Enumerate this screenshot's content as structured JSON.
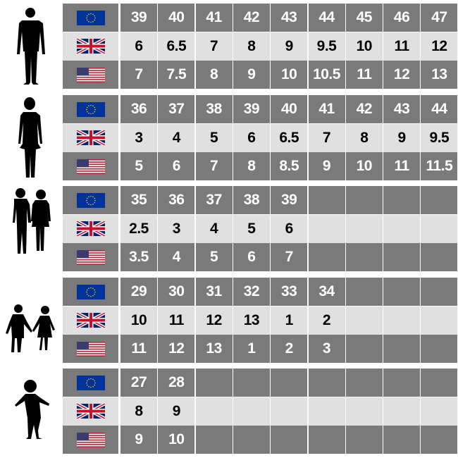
{
  "colors": {
    "dark_row": "#7a7a7a",
    "light_row": "#e0e0e0",
    "eu_blue": "#003399",
    "eu_star": "#ffcc00",
    "uk_red": "#c8102e",
    "uk_blue": "#012169"
  },
  "row_flags": [
    "eu-flag-icon",
    "uk-flag-icon",
    "us-flag-icon"
  ],
  "groups": [
    {
      "figure": "man-silhouette-icon",
      "eu": [
        "39",
        "40",
        "41",
        "42",
        "43",
        "44",
        "45",
        "46",
        "47"
      ],
      "uk": [
        "6",
        "6.5",
        "7",
        "8",
        "9",
        "9.5",
        "10",
        "11",
        "12"
      ],
      "us": [
        "7",
        "7.5",
        "8",
        "9",
        "10",
        "10.5",
        "11",
        "12",
        "13"
      ]
    },
    {
      "figure": "woman-silhouette-icon",
      "eu": [
        "36",
        "37",
        "38",
        "39",
        "40",
        "41",
        "42",
        "43",
        "44"
      ],
      "uk": [
        "3",
        "4",
        "5",
        "6",
        "6.5",
        "7",
        "8",
        "9",
        "9.5"
      ],
      "us": [
        "5",
        "6",
        "7",
        "8",
        "8.5",
        "9",
        "10",
        "11",
        "11.5"
      ]
    },
    {
      "figure": "teen-children-silhouette-icon",
      "eu": [
        "35",
        "36",
        "37",
        "38",
        "39",
        "",
        "",
        "",
        ""
      ],
      "uk": [
        "2.5",
        "3",
        "4",
        "5",
        "6",
        "",
        "",
        "",
        ""
      ],
      "us": [
        "3.5",
        "4",
        "5",
        "6",
        "7",
        "",
        "",
        "",
        ""
      ]
    },
    {
      "figure": "kids-holding-hands-silhouette-icon",
      "eu": [
        "29",
        "30",
        "31",
        "32",
        "33",
        "34",
        "",
        "",
        ""
      ],
      "uk": [
        "10",
        "11",
        "12",
        "13",
        "1",
        "2",
        "",
        "",
        ""
      ],
      "us": [
        "11",
        "12",
        "13",
        "1",
        "2",
        "3",
        "",
        "",
        ""
      ]
    },
    {
      "figure": "toddler-silhouette-icon",
      "eu": [
        "27",
        "28",
        "",
        "",
        "",
        "",
        "",
        "",
        ""
      ],
      "uk": [
        "8",
        "9",
        "",
        "",
        "",
        "",
        "",
        "",
        ""
      ],
      "us": [
        "9",
        "10",
        "",
        "",
        "",
        "",
        "",
        "",
        ""
      ]
    }
  ]
}
